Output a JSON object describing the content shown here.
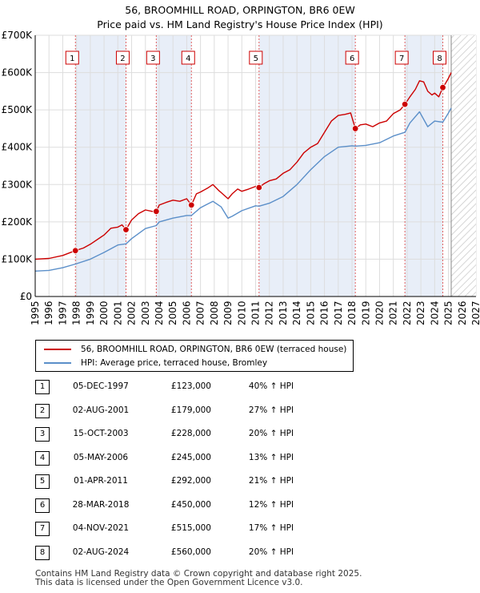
{
  "title_line1": "56, BROOMHILL ROAD, ORPINGTON, BR6 0EW",
  "title_line2": "Price paid vs. HM Land Registry's House Price Index (HPI)",
  "colors": {
    "property": "#cc0000",
    "hpi": "#5b8fc9",
    "shade": "#e8eef8",
    "grid": "#dddddd"
  },
  "chart_data": {
    "type": "line",
    "title": "56, BROOMHILL ROAD, ORPINGTON, BR6 0EW — Price paid vs. HM Land Registry's House Price Index (HPI)",
    "xlabel": "",
    "ylabel": "",
    "xlim": [
      1995,
      2027
    ],
    "ylim": [
      0,
      700000
    ],
    "x_ticks": [
      1995,
      1996,
      1997,
      1998,
      1999,
      2000,
      2001,
      2002,
      2003,
      2004,
      2005,
      2006,
      2007,
      2008,
      2009,
      2010,
      2011,
      2012,
      2013,
      2014,
      2015,
      2016,
      2017,
      2018,
      2019,
      2020,
      2021,
      2022,
      2023,
      2024,
      2025,
      2026,
      2027
    ],
    "y_ticks": [
      {
        "value": 0,
        "label": "£0"
      },
      {
        "value": 100000,
        "label": "£100K"
      },
      {
        "value": 200000,
        "label": "£200K"
      },
      {
        "value": 300000,
        "label": "£300K"
      },
      {
        "value": 400000,
        "label": "£400K"
      },
      {
        "value": 500000,
        "label": "£500K"
      },
      {
        "value": 600000,
        "label": "£600K"
      },
      {
        "value": 700000,
        "label": "£700K"
      }
    ],
    "grid": true,
    "forecast_start": 2025.2,
    "series": [
      {
        "name": "56, BROOMHILL ROAD, ORPINGTON, BR6 0EW (terraced house)",
        "x": [
          1995.0,
          1996.0,
          1997.0,
          1997.92,
          1998.5,
          1999.0,
          2000.0,
          2000.5,
          2001.0,
          2001.3,
          2001.59,
          2002.0,
          2002.5,
          2003.0,
          2003.5,
          2003.79,
          2004.0,
          2004.5,
          2005.0,
          2005.5,
          2006.0,
          2006.34,
          2006.7,
          2007.0,
          2007.5,
          2007.9,
          2008.3,
          2008.6,
          2009.0,
          2009.3,
          2009.7,
          2010.0,
          2010.5,
          2011.0,
          2011.25,
          2011.6,
          2012.0,
          2012.5,
          2013.0,
          2013.5,
          2014.0,
          2014.5,
          2015.0,
          2015.5,
          2016.0,
          2016.5,
          2017.0,
          2017.5,
          2017.9,
          2018.24,
          2018.6,
          2019.0,
          2019.5,
          2020.0,
          2020.5,
          2021.0,
          2021.5,
          2021.84,
          2022.2,
          2022.6,
          2022.9,
          2023.2,
          2023.5,
          2023.8,
          2024.0,
          2024.3,
          2024.59,
          2024.8,
          2025.0,
          2025.2
        ],
        "values": [
          100000,
          102000,
          110000,
          123000,
          130000,
          140000,
          165000,
          183000,
          186000,
          192000,
          179000,
          205000,
          222000,
          232000,
          228000,
          228000,
          245000,
          252000,
          258000,
          255000,
          262000,
          245000,
          275000,
          280000,
          290000,
          300000,
          285000,
          275000,
          262000,
          275000,
          288000,
          282000,
          288000,
          295000,
          292000,
          302000,
          310000,
          315000,
          330000,
          340000,
          360000,
          385000,
          400000,
          410000,
          440000,
          470000,
          485000,
          488000,
          492000,
          450000,
          460000,
          462000,
          455000,
          465000,
          470000,
          490000,
          500000,
          515000,
          535000,
          555000,
          578000,
          575000,
          550000,
          540000,
          545000,
          535000,
          560000,
          572000,
          585000,
          600000
        ]
      },
      {
        "name": "HPI: Average price, terraced house, Bromley",
        "x": [
          1995.0,
          1996.0,
          1997.0,
          1997.92,
          1999.0,
          2000.0,
          2001.0,
          2001.59,
          2002.0,
          2003.0,
          2003.79,
          2004.0,
          2005.0,
          2006.0,
          2006.34,
          2007.0,
          2007.9,
          2008.5,
          2009.0,
          2009.3,
          2010.0,
          2011.0,
          2011.25,
          2012.0,
          2013.0,
          2014.0,
          2015.0,
          2016.0,
          2017.0,
          2018.0,
          2018.24,
          2019.0,
          2020.0,
          2021.0,
          2021.84,
          2022.2,
          2022.9,
          2023.5,
          2024.0,
          2024.59,
          2025.0,
          2025.2
        ],
        "values": [
          68000,
          70000,
          77000,
          87000,
          100000,
          118000,
          138000,
          141000,
          155000,
          182000,
          190000,
          200000,
          210000,
          217000,
          217000,
          238000,
          255000,
          240000,
          210000,
          215000,
          230000,
          243000,
          242000,
          250000,
          268000,
          300000,
          340000,
          375000,
          400000,
          404000,
          403000,
          405000,
          412000,
          430000,
          440000,
          465000,
          495000,
          455000,
          470000,
          467000,
          492000,
          505000
        ]
      }
    ],
    "sales": [
      {
        "num": "1",
        "date": "05-DEC-1997",
        "price": "£123,000",
        "hpi": "40% ↑ HPI",
        "x": 1997.92,
        "value": 123000
      },
      {
        "num": "2",
        "date": "02-AUG-2001",
        "price": "£179,000",
        "hpi": "27% ↑ HPI",
        "x": 2001.59,
        "value": 179000
      },
      {
        "num": "3",
        "date": "15-OCT-2003",
        "price": "£228,000",
        "hpi": "20% ↑ HPI",
        "x": 2003.79,
        "value": 228000
      },
      {
        "num": "4",
        "date": "05-MAY-2006",
        "price": "£245,000",
        "hpi": "13% ↑ HPI",
        "x": 2006.34,
        "value": 245000
      },
      {
        "num": "5",
        "date": "01-APR-2011",
        "price": "£292,000",
        "hpi": "21% ↑ HPI",
        "x": 2011.25,
        "value": 292000
      },
      {
        "num": "6",
        "date": "28-MAR-2018",
        "price": "£450,000",
        "hpi": "12% ↑ HPI",
        "x": 2018.24,
        "value": 450000
      },
      {
        "num": "7",
        "date": "04-NOV-2021",
        "price": "£515,000",
        "hpi": "17% ↑ HPI",
        "x": 2021.84,
        "value": 515000
      },
      {
        "num": "8",
        "date": "02-AUG-2024",
        "price": "£560,000",
        "hpi": "20% ↑ HPI",
        "x": 2024.59,
        "value": 560000
      }
    ]
  },
  "legend": {
    "property_label": "56, BROOMHILL ROAD, ORPINGTON, BR6 0EW (terraced house)",
    "hpi_label": "HPI: Average price, terraced house, Bromley"
  },
  "footer": {
    "line1": "Contains HM Land Registry data © Crown copyright and database right 2025.",
    "line2": "This data is licensed under the Open Government Licence v3.0."
  }
}
